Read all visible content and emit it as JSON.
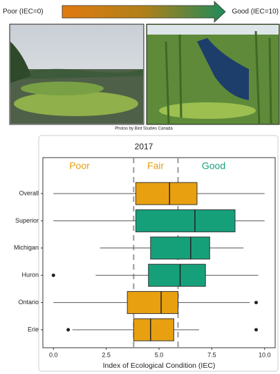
{
  "scale_bar": {
    "left_label": "Poor (IEC=0)",
    "right_label": "Good (IEC=10)"
  },
  "photo_credit": "Photos by Bird Studies Canada",
  "chart_data": {
    "type": "box",
    "title": "2017",
    "categories": [
      "Overall",
      "Superior",
      "Michigan",
      "Huron",
      "Ontario",
      "Erie"
    ],
    "low": [
      0,
      0,
      2.2,
      2.0,
      0,
      0.9
    ],
    "q1": [
      3.9,
      3.9,
      4.6,
      4.5,
      3.5,
      3.8
    ],
    "median": [
      5.5,
      6.7,
      6.5,
      6.0,
      5.1,
      4.6
    ],
    "q3": [
      6.8,
      8.6,
      7.4,
      7.2,
      5.9,
      5.7
    ],
    "high": [
      10,
      10,
      9.0,
      9.7,
      9.3,
      6.9
    ],
    "outliers": [
      [],
      [],
      [],
      [
        0
      ],
      [
        9.6
      ],
      [
        0.7,
        9.6
      ]
    ],
    "colors": [
      "#e8a010",
      "#16a07a",
      "#16a07a",
      "#16a07a",
      "#e8a010",
      "#e8a010"
    ],
    "thresholds": [
      3.8,
      5.9
    ],
    "zone_labels": [
      "Poor",
      "Fair",
      "Good"
    ],
    "zone_colors": [
      "#e8a010",
      "#e8a010",
      "#16a07a"
    ],
    "x_label": "Index of Ecological Condition (IEC)",
    "xlim": [
      -0.5,
      10.5
    ],
    "xticks": [
      {
        "value": 0,
        "label": "0.0"
      },
      {
        "value": 2.5,
        "label": "2.5"
      },
      {
        "value": 5,
        "label": "5.0"
      },
      {
        "value": 7.5,
        "label": "7.5"
      },
      {
        "value": 10,
        "label": "10.0"
      }
    ]
  }
}
